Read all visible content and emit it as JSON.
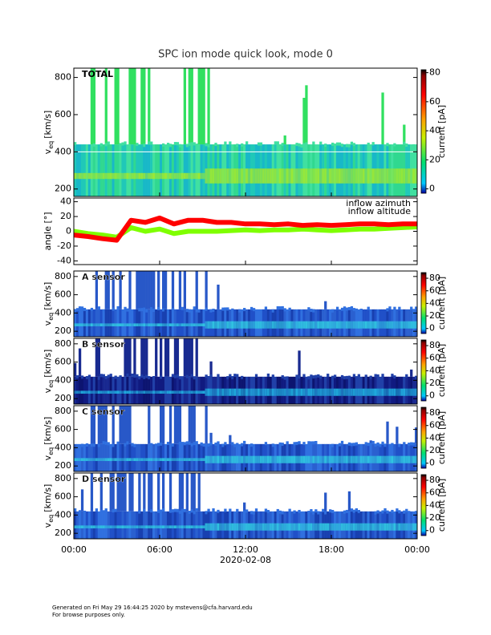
{
  "title": "SPC ion mode quick look, mode 0",
  "x_axis": {
    "label": "2020-02-08",
    "xlim": [
      0,
      24
    ],
    "xticks": [
      {
        "value": 0,
        "label": "00:00"
      },
      {
        "value": 6,
        "label": "06:00"
      },
      {
        "value": 12,
        "label": "12:00"
      },
      {
        "value": 18,
        "label": "18:00"
      },
      {
        "value": 24,
        "label": "00:00"
      }
    ]
  },
  "chart_data": [
    {
      "type": "spectrogram",
      "label": "TOTAL",
      "y_label": {
        "main": "v",
        "sub": "eq",
        "unit": "[km/s]"
      },
      "ylim": [
        160,
        850
      ],
      "yticks": [
        200,
        400,
        600,
        800
      ],
      "colorbar": {
        "label": "current [pA]",
        "clim": [
          -3,
          82
        ],
        "ticks": [
          0,
          20,
          40,
          60,
          80
        ]
      }
    },
    {
      "type": "line",
      "y_label": "angle [°]",
      "ylim": [
        -45,
        45
      ],
      "yticks": [
        -40,
        -20,
        0,
        20,
        40
      ],
      "x": [
        0,
        1,
        2,
        3,
        4,
        5,
        6,
        7,
        8,
        9,
        10,
        11,
        12,
        13,
        14,
        15,
        16,
        17,
        18,
        19,
        20,
        21,
        22,
        23,
        24
      ],
      "series": [
        {
          "name": "inflow azimuth",
          "color": "#ff0000",
          "values": [
            -5,
            -7,
            -10,
            -12,
            15,
            12,
            18,
            10,
            15,
            15,
            12,
            12,
            10,
            10,
            9,
            10,
            8,
            9,
            8,
            9,
            10,
            10,
            9,
            10,
            10
          ]
        },
        {
          "name": "inflow altitude",
          "color": "#7fff00",
          "values": [
            0,
            -3,
            -5,
            -8,
            5,
            0,
            3,
            -3,
            0,
            0,
            0,
            1,
            2,
            1,
            2,
            2,
            3,
            2,
            1,
            2,
            3,
            3,
            4,
            5,
            6
          ]
        }
      ]
    },
    {
      "type": "spectrogram",
      "label": "A sensor",
      "y_label": {
        "main": "v",
        "sub": "eq",
        "unit": "[km/s]"
      },
      "ylim": [
        140,
        860
      ],
      "yticks": [
        200,
        400,
        600,
        800
      ],
      "colorbar": {
        "label": "current [pA]",
        "clim": [
          -8,
          89
        ],
        "ticks": [
          0,
          20,
          40,
          60,
          80
        ]
      }
    },
    {
      "type": "spectrogram",
      "label": "B sensor",
      "y_label": {
        "main": "v",
        "sub": "eq",
        "unit": "[km/s]"
      },
      "ylim": [
        140,
        860
      ],
      "yticks": [
        200,
        400,
        600,
        800
      ],
      "colorbar": {
        "label": "current [pA]",
        "clim": [
          -8,
          89
        ],
        "ticks": [
          0,
          20,
          40,
          60,
          80
        ]
      }
    },
    {
      "type": "spectrogram",
      "label": "C sensor",
      "y_label": {
        "main": "v",
        "sub": "eq",
        "unit": "[km/s]"
      },
      "ylim": [
        140,
        860
      ],
      "yticks": [
        200,
        400,
        600,
        800
      ],
      "colorbar": {
        "label": "current [pA]",
        "clim": [
          -8,
          89
        ],
        "ticks": [
          0,
          20,
          40,
          60,
          80
        ]
      }
    },
    {
      "type": "spectrogram",
      "label": "D sensor",
      "y_label": {
        "main": "v",
        "sub": "eq",
        "unit": "[km/s]"
      },
      "ylim": [
        140,
        860
      ],
      "yticks": [
        200,
        400,
        600,
        800
      ],
      "colorbar": {
        "label": "current [pA]",
        "clim": [
          -8,
          89
        ],
        "ticks": [
          0,
          20,
          40,
          60,
          80
        ]
      }
    }
  ],
  "footer": [
    "Generated on Fri May 29 16:44:25 2020 by mstevens@cfa.harvard.edu",
    "For browse purposes only."
  ]
}
